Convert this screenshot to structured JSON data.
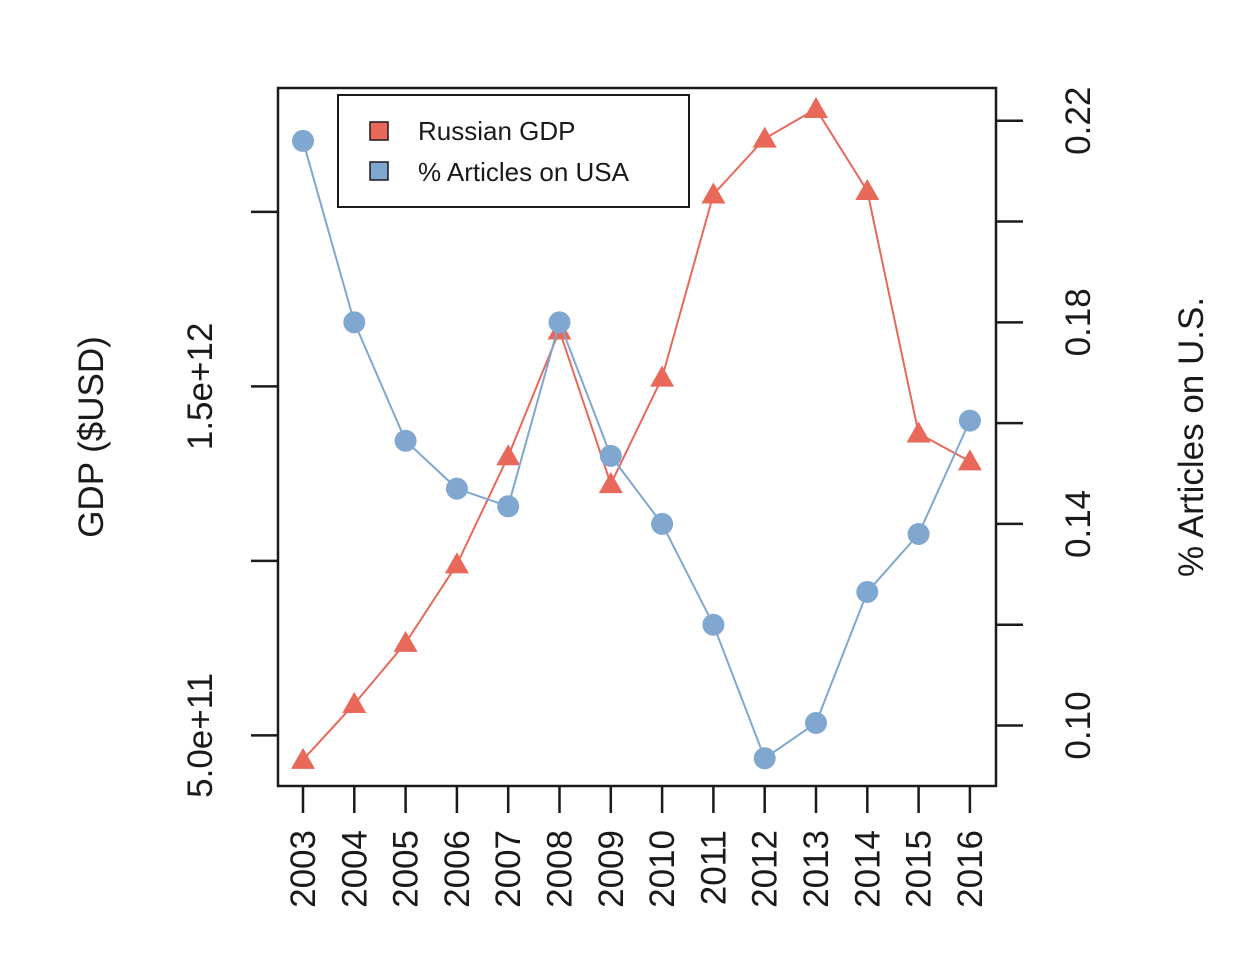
{
  "chart_data": {
    "type": "line",
    "categories": [
      "2003",
      "2004",
      "2005",
      "2006",
      "2007",
      "2008",
      "2009",
      "2010",
      "2011",
      "2012",
      "2013",
      "2014",
      "2015",
      "2016"
    ],
    "y_left": {
      "label": "GDP ($USD)",
      "tick_values": [
        500000000000,
        1000000000000,
        1500000000000,
        2000000000000
      ],
      "tick_labels": [
        "5.0e+11",
        "",
        "1.5e+12",
        ""
      ],
      "ylim": [
        355000000000,
        2355000000000
      ]
    },
    "y_right": {
      "label": "% Articles on U.S.",
      "tick_values": [
        0.1,
        0.12,
        0.14,
        0.16,
        0.18,
        0.2,
        0.22
      ],
      "tick_labels": [
        "0.10",
        "",
        "0.14",
        "",
        "0.18",
        "",
        "0.22"
      ],
      "ylim": [
        0.088,
        0.2265
      ]
    },
    "series": [
      {
        "name": "Russian GDP",
        "axis": "left",
        "marker": "triangle",
        "color": "#E8685A",
        "values": [
          430000000000,
          590000000000,
          765000000000,
          990000000000,
          1300000000000,
          1660000000000,
          1220000000000,
          1525000000000,
          2050000000000,
          2210000000000,
          2295000000000,
          2060000000000,
          1365000000000,
          1285000000000
        ]
      },
      {
        "name": "% Articles on USA",
        "axis": "right",
        "marker": "circle",
        "color": "#7FA7D0",
        "values": [
          0.216,
          0.18,
          0.1565,
          0.147,
          0.1435,
          0.18,
          0.1535,
          0.14,
          0.12,
          0.0935,
          0.1005,
          0.1265,
          0.138,
          0.1605
        ]
      }
    ],
    "legend": {
      "position": "top-left",
      "entries": [
        {
          "label": "Russian GDP",
          "color": "#E8685A"
        },
        {
          "label": "% Articles on USA",
          "color": "#7FA7D0"
        }
      ]
    },
    "grid": false
  }
}
